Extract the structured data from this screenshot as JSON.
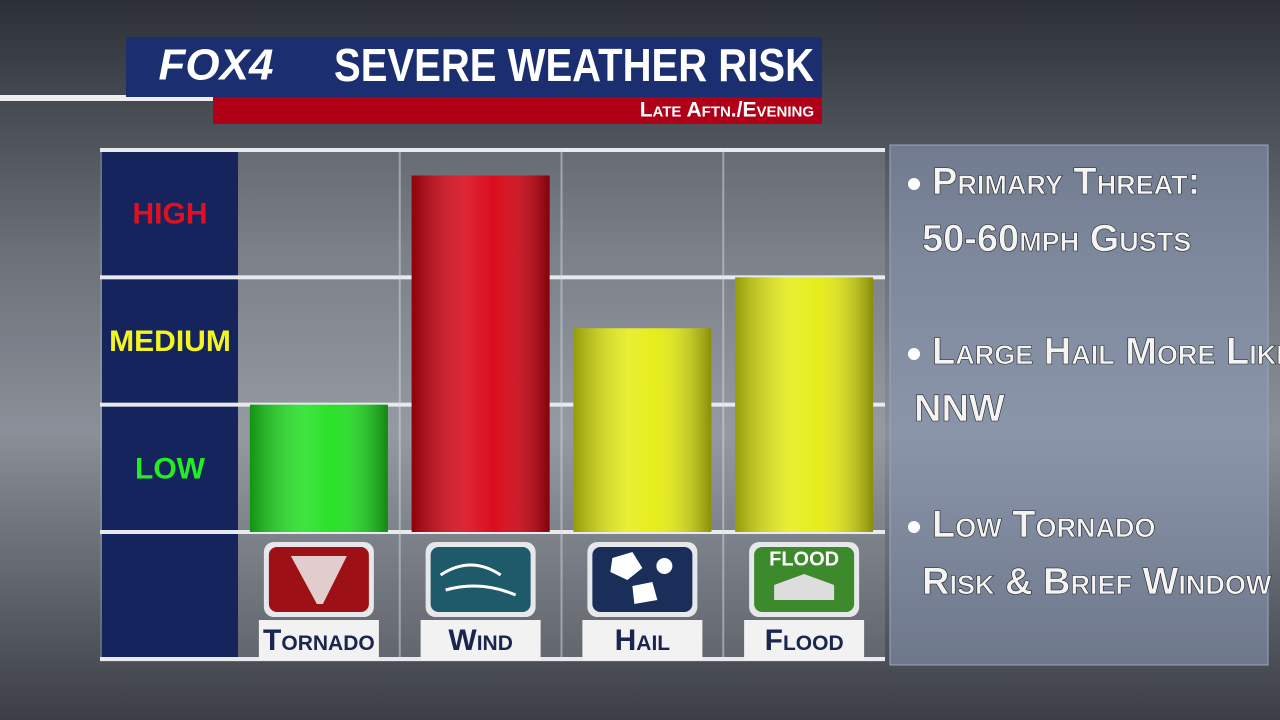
{
  "header": {
    "logo": "FOX4",
    "title": "SEVERE WEATHER RISK",
    "subtitle": "Late Aftn./Evening"
  },
  "chart_data": {
    "type": "bar",
    "categories": [
      "Tornado",
      "Wind",
      "Hail",
      "Flood"
    ],
    "values": [
      1.0,
      2.8,
      1.6,
      2.0
    ],
    "colors": [
      "#1ee01e",
      "#d80010",
      "#e4ec10",
      "#e4ec10"
    ],
    "ylim": [
      0,
      3
    ],
    "yticks": [
      {
        "value": 0.5,
        "label": "LOW"
      },
      {
        "value": 1.5,
        "label": "MEDIUM"
      },
      {
        "value": 2.5,
        "label": "HIGH"
      }
    ],
    "ytick_colors": [
      "#22ee22",
      "#f4f420",
      "#e01020"
    ],
    "icon_text": "FLOOD"
  },
  "notes": [
    {
      "lines": [
        "Primary Threat:",
        "50-60mph Gusts"
      ]
    },
    {
      "lines": [
        "Large Hail More Likely",
        "NNW"
      ]
    },
    {
      "lines": [
        "Low Tornado",
        "Risk & Brief Window"
      ]
    }
  ]
}
